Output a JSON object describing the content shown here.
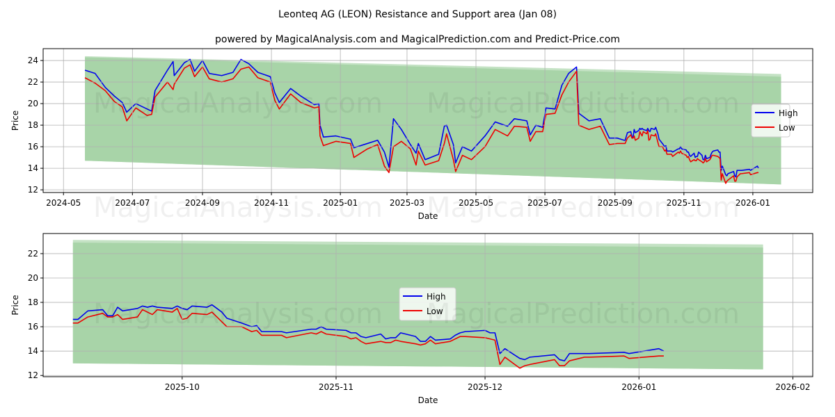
{
  "title": "Leonteq AG (LEON) Resistance and Support area (Jan 08)",
  "subtitle": "powered by MagicalAnalysis.com and MagicalPrediction.com and Predict-Price.com",
  "watermarks": [
    "MagicalAnalysis.com",
    "MagicalPrediction.com"
  ],
  "colors": {
    "high": "#0000ee",
    "low": "#ee0000",
    "band": "#a8d4a8",
    "band_outer": "#c4e2c4",
    "grid": "#b0b0b0"
  },
  "chart_data": [
    {
      "type": "line",
      "xlabel": "Date",
      "ylabel": "Price",
      "ylim": [
        11.75,
        25.1
      ],
      "xlim": [
        "2024-04-13",
        "2026-02-23"
      ],
      "grid": true,
      "legend": {
        "placement": "center-right",
        "entries": [
          "High",
          "Low"
        ]
      },
      "yticks": [
        12,
        14,
        16,
        18,
        20,
        22,
        24
      ],
      "xticks": [
        "2024-05",
        "2024-07",
        "2024-09",
        "2024-11",
        "2025-01",
        "2025-03",
        "2025-05",
        "2025-07",
        "2025-09",
        "2025-11",
        "2026-01"
      ],
      "band": {
        "start": "2024-05-20",
        "end": "2026-01-26",
        "upper": [
          24.3,
          22.5
        ],
        "upper_outer": [
          24.4,
          22.75
        ],
        "lower": [
          14.7,
          12.5
        ]
      },
      "x": [
        "2024-05-20",
        "2024-05-29",
        "2024-06-07",
        "2024-06-15",
        "2024-06-22",
        "2024-06-26",
        "2024-07-04",
        "2024-07-14",
        "2024-07-18",
        "2024-07-21",
        "2024-08-01",
        "2024-08-06",
        "2024-08-07",
        "2024-08-16",
        "2024-08-21",
        "2024-08-25",
        "2024-09-01",
        "2024-09-07",
        "2024-09-18",
        "2024-09-28",
        "2024-10-05",
        "2024-10-12",
        "2024-10-20",
        "2024-10-31",
        "2024-11-04",
        "2024-11-08",
        "2024-11-18",
        "2024-11-27",
        "2024-12-09",
        "2024-12-13",
        "2024-12-14",
        "2024-12-17",
        "2024-12-28",
        "2025-01-10",
        "2025-01-13",
        "2025-01-25",
        "2025-02-03",
        "2025-02-09",
        "2025-02-13",
        "2025-02-17",
        "2025-02-24",
        "2025-03-04",
        "2025-03-09",
        "2025-03-11",
        "2025-03-17",
        "2025-03-29",
        "2025-04-03",
        "2025-04-05",
        "2025-04-11",
        "2025-04-13",
        "2025-04-19",
        "2025-04-27",
        "2025-05-09",
        "2025-05-18",
        "2025-05-29",
        "2025-06-04",
        "2025-06-15",
        "2025-06-18",
        "2025-06-23",
        "2025-06-29",
        "2025-07-02",
        "2025-07-10",
        "2025-07-16",
        "2025-07-22",
        "2025-07-29",
        "2025-07-31",
        "2025-08-09",
        "2025-08-19",
        "2025-08-27",
        "2025-09-03",
        "2025-09-09",
        "2025-09-10",
        "2025-09-12",
        "2025-09-15",
        "2025-09-16",
        "2025-09-17",
        "2025-09-18",
        "2025-09-19",
        "2025-09-22",
        "2025-09-23",
        "2025-09-24",
        "2025-09-25",
        "2025-09-26",
        "2025-09-29",
        "2025-09-30",
        "2025-10-01",
        "2025-10-02",
        "2025-10-03",
        "2025-10-06",
        "2025-10-07",
        "2025-10-09",
        "2025-10-10",
        "2025-10-13",
        "2025-10-15",
        "2025-10-16",
        "2025-10-17",
        "2025-10-21",
        "2025-10-22",
        "2025-10-27",
        "2025-10-28",
        "2025-10-29",
        "2025-10-30",
        "2025-11-03",
        "2025-11-04",
        "2025-11-05",
        "2025-11-06",
        "2025-11-07",
        "2025-11-10",
        "2025-11-11",
        "2025-11-12",
        "2025-11-13",
        "2025-11-14",
        "2025-11-17",
        "2025-11-18",
        "2025-11-19",
        "2025-11-20",
        "2025-11-21",
        "2025-11-24",
        "2025-11-25",
        "2025-11-26",
        "2025-11-27",
        "2025-12-01",
        "2025-12-02",
        "2025-12-03",
        "2025-12-04",
        "2025-12-05",
        "2025-12-08",
        "2025-12-09",
        "2025-12-10",
        "2025-12-15",
        "2025-12-16",
        "2025-12-17",
        "2025-12-18",
        "2025-12-21",
        "2025-12-22",
        "2025-12-29",
        "2025-12-30",
        "2026-01-05",
        "2026-01-06"
      ],
      "series": [
        {
          "name": "High",
          "values": [
            23.1,
            22.8,
            21.5,
            20.7,
            20.1,
            19.2,
            20.0,
            19.5,
            19.3,
            21.2,
            23.1,
            23.9,
            22.6,
            23.8,
            24.1,
            23.0,
            24.0,
            22.8,
            22.6,
            22.9,
            24.1,
            23.7,
            22.9,
            22.5,
            21.0,
            20.1,
            21.4,
            20.7,
            19.9,
            20.0,
            18.0,
            16.9,
            17.0,
            16.7,
            15.9,
            16.3,
            16.6,
            15.5,
            14.1,
            18.6,
            17.6,
            16.2,
            15.4,
            16.3,
            14.8,
            15.3,
            17.9,
            18.0,
            16.2,
            14.5,
            16.0,
            15.6,
            17.0,
            18.3,
            17.9,
            18.6,
            18.4,
            17.1,
            18.0,
            17.8,
            19.6,
            19.5,
            21.7,
            22.8,
            23.4,
            19.1,
            18.4,
            18.6,
            16.8,
            16.8,
            16.6,
            16.6,
            17.3,
            17.4,
            16.9,
            16.9,
            17.6,
            17.3,
            17.5,
            17.7,
            17.6,
            17.7,
            17.6,
            17.5,
            17.7,
            17.5,
            17.4,
            17.7,
            17.6,
            17.8,
            17.2,
            16.7,
            16.3,
            16.0,
            16.1,
            15.6,
            15.6,
            15.5,
            15.8,
            15.8,
            16.0,
            15.8,
            15.7,
            15.5,
            15.5,
            15.2,
            15.1,
            15.4,
            15.0,
            15.1,
            15.1,
            15.5,
            15.2,
            14.8,
            14.8,
            15.2,
            14.9,
            15.0,
            15.3,
            15.5,
            15.6,
            15.7,
            15.5,
            15.5,
            13.8,
            14.2,
            13.4,
            13.3,
            13.5,
            13.7,
            13.3,
            13.2,
            13.8,
            13.8,
            13.8,
            13.9,
            13.8,
            14.2,
            14.0
          ]
        },
        {
          "name": "Low",
          "values": [
            22.4,
            21.9,
            21.2,
            20.2,
            19.7,
            18.4,
            19.6,
            18.9,
            19.0,
            20.6,
            22.0,
            21.3,
            21.8,
            23.3,
            23.6,
            22.5,
            23.4,
            22.3,
            22.0,
            22.3,
            23.2,
            23.4,
            22.4,
            22.0,
            20.3,
            19.5,
            20.9,
            20.1,
            19.6,
            19.7,
            17.0,
            16.1,
            16.5,
            16.3,
            15.0,
            15.8,
            16.2,
            14.2,
            13.6,
            16.0,
            16.5,
            15.8,
            14.3,
            15.6,
            14.3,
            14.7,
            16.3,
            17.2,
            14.8,
            13.7,
            15.2,
            14.8,
            16.0,
            17.6,
            17.0,
            17.9,
            17.8,
            16.5,
            17.4,
            17.4,
            19.0,
            19.1,
            20.8,
            22.0,
            23.0,
            18.0,
            17.6,
            17.9,
            16.2,
            16.3,
            16.3,
            16.3,
            16.8,
            17.1,
            16.8,
            16.8,
            17.0,
            16.6,
            16.8,
            17.4,
            17.2,
            17.0,
            17.4,
            17.2,
            17.5,
            16.6,
            16.7,
            17.1,
            17.0,
            17.2,
            16.4,
            16.0,
            16.0,
            15.6,
            15.7,
            15.3,
            15.3,
            15.1,
            15.5,
            15.4,
            15.6,
            15.4,
            15.2,
            15.0,
            15.1,
            14.8,
            14.6,
            14.8,
            14.7,
            14.7,
            14.9,
            14.8,
            14.6,
            14.5,
            14.6,
            14.9,
            14.6,
            14.8,
            15.0,
            15.2,
            15.2,
            15.1,
            15.0,
            14.9,
            12.9,
            13.5,
            12.6,
            12.8,
            12.9,
            13.3,
            12.8,
            12.8,
            13.2,
            13.5,
            13.5,
            13.6,
            13.4,
            13.6,
            13.6
          ]
        }
      ]
    },
    {
      "type": "line",
      "xlabel": "Date",
      "ylabel": "Price",
      "ylim": [
        11.9,
        23.65
      ],
      "xlim": [
        "2025-09-03",
        "2026-02-05"
      ],
      "x_start": "2025-09-09",
      "grid": true,
      "legend": {
        "placement": "center",
        "entries": [
          "High",
          "Low"
        ]
      },
      "yticks": [
        12,
        14,
        16,
        18,
        20,
        22
      ],
      "xticks": [
        "2025-10",
        "2025-11",
        "2025-12",
        "2026-01",
        "2026-02"
      ],
      "series_source": "chart_data.0"
    }
  ]
}
